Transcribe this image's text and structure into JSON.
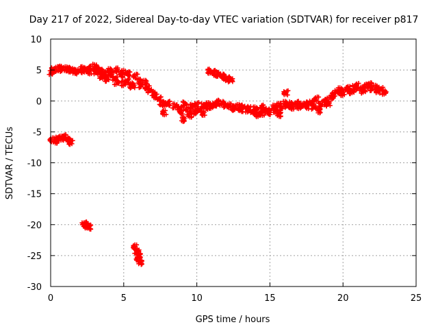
{
  "chart_data": {
    "type": "scatter",
    "title": "Day 217 of 2022, Sidereal Day-to-day VTEC variation (SDTVAR) for receiver p817",
    "xlabel": "GPS time / hours",
    "ylabel": "SDTVAR / TECUs",
    "xlim": [
      0,
      25
    ],
    "ylim": [
      -30,
      10
    ],
    "x_ticks": [
      0,
      5,
      10,
      15,
      20,
      25
    ],
    "y_ticks": [
      -30,
      -25,
      -20,
      -15,
      -10,
      -5,
      0,
      5,
      10
    ],
    "grid": true,
    "marker": "plus",
    "series": [
      {
        "name": "SDTVAR",
        "color": "#ff0000",
        "points": [
          [
            0.0,
            4.6
          ],
          [
            0.2,
            5.0
          ],
          [
            0.4,
            5.2
          ],
          [
            0.6,
            5.3
          ],
          [
            0.8,
            5.1
          ],
          [
            1.0,
            5.2
          ],
          [
            1.2,
            5.0
          ],
          [
            1.4,
            5.1
          ],
          [
            1.6,
            4.8
          ],
          [
            1.8,
            4.7
          ],
          [
            2.0,
            4.9
          ],
          [
            2.2,
            5.2
          ],
          [
            2.4,
            5.0
          ],
          [
            2.6,
            5.3
          ],
          [
            2.7,
            4.7
          ],
          [
            3.0,
            5.6
          ],
          [
            3.1,
            4.6
          ],
          [
            3.2,
            5.0
          ],
          [
            3.4,
            4.8
          ],
          [
            3.5,
            4.0
          ],
          [
            3.6,
            3.9
          ],
          [
            3.8,
            4.5
          ],
          [
            3.9,
            3.5
          ],
          [
            4.0,
            4.9
          ],
          [
            4.2,
            4.3
          ],
          [
            4.4,
            3.6
          ],
          [
            4.5,
            3.0
          ],
          [
            4.6,
            5.0
          ],
          [
            4.8,
            4.2
          ],
          [
            5.0,
            4.6
          ],
          [
            5.0,
            2.8
          ],
          [
            5.2,
            3.2
          ],
          [
            5.4,
            4.4
          ],
          [
            5.5,
            2.6
          ],
          [
            5.6,
            2.4
          ],
          [
            5.8,
            4.0
          ],
          [
            6.0,
            3.2
          ],
          [
            6.2,
            2.5
          ],
          [
            6.4,
            3.0
          ],
          [
            6.6,
            2.1
          ],
          [
            6.8,
            1.7
          ],
          [
            7.0,
            1.2
          ],
          [
            7.2,
            0.8
          ],
          [
            7.4,
            0.3
          ],
          [
            7.6,
            -0.3
          ],
          [
            7.8,
            -0.5
          ],
          [
            8.0,
            -0.4
          ],
          [
            7.8,
            -1.9
          ],
          [
            8.5,
            -0.8
          ],
          [
            8.8,
            -1.2
          ],
          [
            9.0,
            -1.8
          ],
          [
            9.0,
            -3.0
          ],
          [
            9.2,
            -0.5
          ],
          [
            9.4,
            -1.4
          ],
          [
            9.5,
            -2.3
          ],
          [
            9.7,
            -0.9
          ],
          [
            9.8,
            -1.8
          ],
          [
            10.0,
            -0.6
          ],
          [
            10.2,
            -1.5
          ],
          [
            10.4,
            -0.8
          ],
          [
            10.5,
            -2.0
          ],
          [
            10.6,
            -1.0
          ],
          [
            10.8,
            -0.6
          ],
          [
            11.0,
            -0.9
          ],
          [
            11.2,
            -0.5
          ],
          [
            11.5,
            -0.2
          ],
          [
            11.7,
            -0.4
          ],
          [
            12.0,
            -0.7
          ],
          [
            12.2,
            -0.8
          ],
          [
            12.4,
            -1.1
          ],
          [
            12.6,
            -1.2
          ],
          [
            12.8,
            -0.9
          ],
          [
            13.0,
            -1.4
          ],
          [
            13.2,
            -1.0
          ],
          [
            13.4,
            -1.5
          ],
          [
            13.6,
            -1.2
          ],
          [
            13.8,
            -1.8
          ],
          [
            14.0,
            -1.3
          ],
          [
            14.2,
            -2.2
          ],
          [
            14.4,
            -1.0
          ],
          [
            14.5,
            -2.0
          ],
          [
            14.6,
            -1.4
          ],
          [
            14.8,
            -1.6
          ],
          [
            15.0,
            -1.9
          ],
          [
            15.2,
            -1.0
          ],
          [
            15.4,
            -1.5
          ],
          [
            15.6,
            -0.7
          ],
          [
            15.6,
            -2.2
          ],
          [
            15.8,
            -1.2
          ],
          [
            16.0,
            -0.4
          ],
          [
            16.1,
            1.3
          ],
          [
            16.2,
            -0.8
          ],
          [
            16.4,
            -0.5
          ],
          [
            16.6,
            -1.0
          ],
          [
            16.8,
            -0.4
          ],
          [
            17.0,
            -0.9
          ],
          [
            17.2,
            -0.7
          ],
          [
            17.4,
            -0.5
          ],
          [
            17.6,
            -0.9
          ],
          [
            17.8,
            -0.3
          ],
          [
            18.0,
            -1.0
          ],
          [
            18.2,
            0.3
          ],
          [
            18.3,
            -1.6
          ],
          [
            18.5,
            -0.7
          ],
          [
            18.7,
            -0.3
          ],
          [
            18.9,
            0.2
          ],
          [
            19.0,
            -0.5
          ],
          [
            19.2,
            0.6
          ],
          [
            19.4,
            1.0
          ],
          [
            19.6,
            1.5
          ],
          [
            19.8,
            1.8
          ],
          [
            20.0,
            1.2
          ],
          [
            20.2,
            1.9
          ],
          [
            20.4,
            2.0
          ],
          [
            20.6,
            1.5
          ],
          [
            20.8,
            2.2
          ],
          [
            21.0,
            2.5
          ],
          [
            21.2,
            1.9
          ],
          [
            21.4,
            1.6
          ],
          [
            21.6,
            2.4
          ],
          [
            21.8,
            2.6
          ],
          [
            22.0,
            2.0
          ],
          [
            22.2,
            2.2
          ],
          [
            22.4,
            1.6
          ],
          [
            22.6,
            1.9
          ],
          [
            22.8,
            1.4
          ],
          [
            10.9,
            4.8
          ],
          [
            11.1,
            4.6
          ],
          [
            11.3,
            4.4
          ],
          [
            11.5,
            4.3
          ],
          [
            11.7,
            4.0
          ],
          [
            11.9,
            3.8
          ],
          [
            12.1,
            3.6
          ],
          [
            12.3,
            3.4
          ],
          [
            0.1,
            -6.3
          ],
          [
            0.3,
            -6.5
          ],
          [
            0.5,
            -6.2
          ],
          [
            0.7,
            -6.0
          ],
          [
            0.9,
            -5.8
          ],
          [
            1.0,
            -6.0
          ],
          [
            1.2,
            -6.3
          ],
          [
            1.4,
            -6.7
          ],
          [
            2.3,
            -19.9
          ],
          [
            2.4,
            -20.0
          ],
          [
            2.5,
            -20.2
          ],
          [
            2.6,
            -20.4
          ],
          [
            5.8,
            -23.6
          ],
          [
            5.9,
            -24.3
          ],
          [
            6.0,
            -25.0
          ],
          [
            6.0,
            -25.6
          ],
          [
            6.1,
            -26.1
          ]
        ]
      }
    ]
  }
}
